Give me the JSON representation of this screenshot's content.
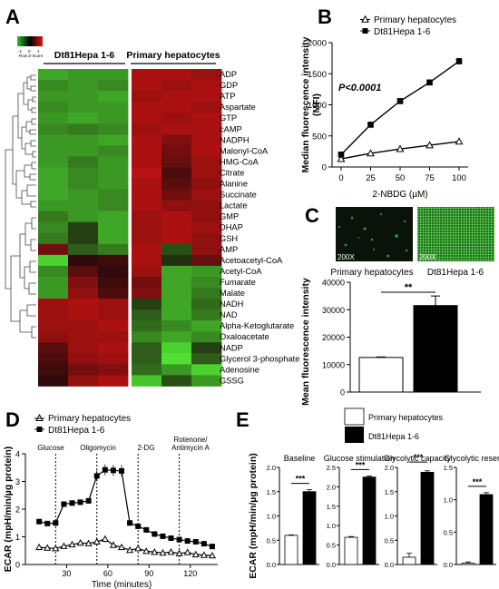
{
  "panels": {
    "A": {
      "letter": "A",
      "legend_label": "Row Z-Score",
      "legend_ticks": [
        "-1",
        "0",
        "1"
      ],
      "group_labels": [
        "Dt81Hepa 1-6",
        "Primary hepatocytes"
      ],
      "metabolites": [
        "ADP",
        "GDP",
        "ATP",
        "Aspartate",
        "GTP",
        "cAMP",
        "NADPH",
        "Malonyl-CoA",
        "HMG-CoA",
        "Citrate",
        "Alanine",
        "Succinate",
        "Lactate",
        "GMP",
        "DHAP",
        "GSH",
        "AMP",
        "Acetoacetyl-CoA",
        "Acetyl-CoA",
        "Fumarate",
        "Malate",
        "NADH",
        "NAD",
        "Alpha-Ketoglutarate",
        "Oxaloacetate",
        "NADP",
        "Glycerol 3-phosphate",
        "Adenosine",
        "GSSG"
      ],
      "heatmap_z": [
        [
          -1.0,
          -0.9,
          -0.9,
          1.0,
          1.0,
          0.9
        ],
        [
          -0.8,
          -0.9,
          -0.8,
          1.0,
          0.9,
          1.0
        ],
        [
          -0.9,
          -0.9,
          -1.0,
          0.9,
          1.0,
          1.0
        ],
        [
          -0.8,
          -0.9,
          -0.9,
          1.0,
          1.0,
          0.9
        ],
        [
          -0.9,
          -1.0,
          -0.9,
          1.0,
          0.9,
          1.0
        ],
        [
          -0.8,
          -0.7,
          -0.8,
          0.9,
          1.0,
          1.0
        ],
        [
          -0.9,
          -0.9,
          -1.0,
          1.0,
          0.7,
          1.0
        ],
        [
          -0.9,
          -0.9,
          -0.8,
          1.0,
          0.6,
          1.0
        ],
        [
          -0.9,
          -0.7,
          -0.9,
          1.0,
          0.5,
          0.9
        ],
        [
          -1.0,
          -0.8,
          -0.9,
          1.1,
          0.3,
          0.9
        ],
        [
          -1.0,
          -0.8,
          -0.9,
          1.0,
          0.4,
          0.8
        ],
        [
          -1.0,
          -0.9,
          -0.8,
          1.0,
          0.6,
          0.9
        ],
        [
          -0.9,
          -0.9,
          -0.8,
          1.0,
          0.8,
          0.8
        ],
        [
          -0.7,
          -0.9,
          -1.0,
          0.9,
          1.0,
          0.8
        ],
        [
          -0.8,
          -0.3,
          -1.0,
          0.9,
          1.0,
          0.9
        ],
        [
          -0.7,
          -0.3,
          -1.0,
          0.9,
          1.0,
          0.8
        ],
        [
          0.6,
          -0.5,
          -0.7,
          1.0,
          -0.4,
          0.8
        ],
        [
          -1.3,
          0.1,
          0.2,
          1.0,
          -0.2,
          0.5
        ],
        [
          -0.8,
          0.4,
          0.1,
          0.9,
          -1.0,
          -0.9
        ],
        [
          -0.9,
          0.7,
          0.2,
          0.6,
          -1.0,
          -0.8
        ],
        [
          -0.9,
          0.8,
          0.3,
          0.7,
          -1.0,
          -0.7
        ],
        [
          0.9,
          1.0,
          0.9,
          -0.3,
          -1.0,
          -0.6
        ],
        [
          0.9,
          1.0,
          0.9,
          -0.5,
          -1.0,
          -0.7
        ],
        [
          0.9,
          0.9,
          1.0,
          -0.6,
          -0.8,
          -1.0
        ],
        [
          0.8,
          0.9,
          0.9,
          -0.8,
          -1.0,
          -0.8
        ],
        [
          0.4,
          0.9,
          1.0,
          -0.5,
          -1.3,
          -0.3
        ],
        [
          0.3,
          0.8,
          0.9,
          -0.5,
          -1.4,
          -0.5
        ],
        [
          0.2,
          0.6,
          0.7,
          -0.6,
          -0.9,
          -1.3
        ],
        [
          0.1,
          0.8,
          1.0,
          -1.2,
          -0.4,
          -0.9
        ]
      ],
      "colors": {
        "low": "#2fbf2f",
        "mid": "#000000",
        "high": "#d81818"
      }
    },
    "B": {
      "letter": "B",
      "legend": [
        "Primary hepatocytes",
        "Dt81Hepa 1-6"
      ],
      "annotation": "P<0.0001"
    },
    "C": {
      "letter": "C",
      "image_labels": [
        "Primary hepatocytes",
        "Dt81Hepa 1-6"
      ],
      "magnification": "200X",
      "significance": "**"
    },
    "D": {
      "letter": "D",
      "legend": [
        "Primary hepatocytes",
        "Dt81Hepa 1-6"
      ],
      "injections": [
        "Glucose",
        "Oligomycin",
        "2-DG",
        "Rotenone/",
        "Antimycin A"
      ]
    },
    "E": {
      "letter": "E",
      "legend": [
        "Primary hepatocytes",
        "Dt81Hepa 1-6"
      ],
      "significance": "***"
    }
  },
  "chart_data": [
    {
      "id": "B",
      "type": "line",
      "x": [
        0,
        25,
        50,
        75,
        100
      ],
      "xlabel": "2-NBDG (µM)",
      "ylabel": "Median fluorescence intensity (MFI)",
      "ylim": [
        0,
        2000
      ],
      "yticks": [
        0,
        500,
        1000,
        1500,
        2000
      ],
      "series": [
        {
          "name": "Primary hepatocytes",
          "values": [
            130,
            220,
            290,
            350,
            410
          ],
          "err": [
            10,
            15,
            15,
            15,
            15
          ],
          "marker": "triangle"
        },
        {
          "name": "Dt81Hepa 1-6",
          "values": [
            200,
            680,
            1060,
            1360,
            1700
          ],
          "err": [
            15,
            25,
            25,
            35,
            45
          ],
          "marker": "square"
        }
      ]
    },
    {
      "id": "C",
      "type": "bar",
      "categories": [
        "Primary hepatocytes",
        "Dt81Hepa 1-6"
      ],
      "values": [
        12600,
        31500
      ],
      "err": [
        200,
        3500
      ],
      "ylabel": "Mean fluorescence intensity",
      "ylim": [
        0,
        40000
      ],
      "yticks": [
        0,
        10000,
        20000,
        30000,
        40000
      ]
    },
    {
      "id": "D",
      "type": "line",
      "x": [
        10,
        16,
        22,
        28,
        34,
        40,
        46,
        52,
        58,
        64,
        70,
        76,
        82,
        88,
        94,
        100,
        106,
        112,
        118,
        124,
        130,
        136
      ],
      "xlabel": "Time (minutes)",
      "ylabel": "ECAR (mpH/min/µg protein)",
      "xticks": [
        30,
        60,
        90,
        120
      ],
      "ylim": [
        0,
        4
      ],
      "yticks": [
        0,
        1,
        2,
        3,
        4
      ],
      "events": [
        22,
        52,
        82,
        112
      ],
      "series": [
        {
          "name": "Primary hepatocytes",
          "values": [
            0.62,
            0.6,
            0.58,
            0.66,
            0.72,
            0.78,
            0.76,
            0.82,
            0.92,
            0.7,
            0.62,
            0.52,
            0.58,
            0.48,
            0.45,
            0.42,
            0.45,
            0.4,
            0.44,
            0.36,
            0.34,
            0.32
          ],
          "err": [
            0.05,
            0.05,
            0.05,
            0.06,
            0.08,
            0.1,
            0.08,
            0.08,
            0.12,
            0.08,
            0.07,
            0.06,
            0.06,
            0.05,
            0.05,
            0.05,
            0.05,
            0.05,
            0.05,
            0.05,
            0.05,
            0.05
          ],
          "marker": "triangle"
        },
        {
          "name": "Dt81Hepa 1-6",
          "values": [
            1.55,
            1.48,
            1.5,
            2.18,
            2.22,
            2.25,
            2.3,
            3.2,
            3.42,
            3.4,
            3.38,
            1.5,
            1.38,
            1.25,
            1.1,
            1.02,
            0.95,
            0.9,
            0.85,
            0.82,
            0.75,
            0.65
          ],
          "err": [
            0.05,
            0.05,
            0.05,
            0.1,
            0.1,
            0.1,
            0.1,
            0.2,
            0.2,
            0.2,
            0.2,
            0.1,
            0.06,
            0.05,
            0.05,
            0.05,
            0.05,
            0.05,
            0.05,
            0.05,
            0.05,
            0.05
          ],
          "marker": "square"
        }
      ]
    },
    {
      "id": "E1",
      "type": "bar",
      "title": "Baseline",
      "categories": [
        "Primary hepatocytes",
        "Dt81Hepa 1-6"
      ],
      "values": [
        0.6,
        1.5
      ],
      "err": [
        0.01,
        0.04
      ],
      "ylabel": "ECAR (mpH/min/µg protein)",
      "ylim": [
        0,
        2.0
      ],
      "yticks": [
        0.0,
        0.5,
        1.0,
        1.5,
        2.0
      ]
    },
    {
      "id": "E2",
      "type": "bar",
      "title": "Glucose stimulation",
      "categories": [
        "Primary hepatocytes",
        "Dt81Hepa 1-6"
      ],
      "values": [
        0.7,
        2.25
      ],
      "err": [
        0.02,
        0.03
      ],
      "ylim": [
        0,
        2.5
      ],
      "yticks": [
        0.0,
        0.5,
        1.0,
        1.5,
        2.0,
        2.5
      ]
    },
    {
      "id": "E3",
      "type": "bar",
      "title": "Glycolytic capacity",
      "categories": [
        "Primary hepatocytes",
        "Dt81Hepa 1-6"
      ],
      "values": [
        0.15,
        1.9
      ],
      "err": [
        0.08,
        0.03
      ],
      "ylim": [
        0,
        2.0
      ],
      "yticks": [
        0.0,
        0.5,
        1.0,
        1.5,
        2.0
      ]
    },
    {
      "id": "E4",
      "type": "bar",
      "title": "Glycolytic reserve",
      "categories": [
        "Primary hepatocytes",
        "Dt81Hepa 1-6"
      ],
      "values": [
        0.02,
        1.08
      ],
      "err": [
        0.02,
        0.03
      ],
      "ylim": [
        0,
        1.5
      ],
      "yticks": [
        0.0,
        0.5,
        1.0,
        1.5
      ]
    }
  ]
}
